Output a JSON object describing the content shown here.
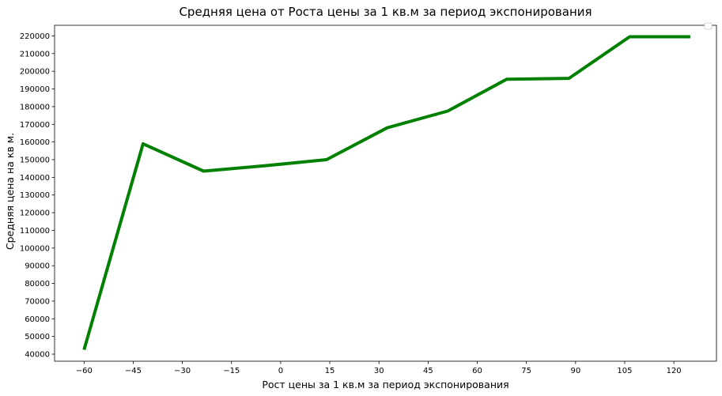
{
  "chart_data": {
    "type": "line",
    "title": "Средняя цена от Роста цены за 1 кв.м за период экспонирования",
    "xlabel": "Рост цены за 1 кв.м за период экспонирования",
    "ylabel": "Средняя цена на кв м.",
    "xlim": [
      -69,
      133
    ],
    "ylim": [
      36000,
      226000
    ],
    "xticks": [
      -60,
      -45,
      -30,
      -15,
      0,
      15,
      30,
      45,
      60,
      75,
      90,
      105,
      120
    ],
    "xtick_labels": [
      "−60",
      "−45",
      "−30",
      "−15",
      "0",
      "15",
      "30",
      "45",
      "60",
      "75",
      "90",
      "105",
      "120"
    ],
    "yticks": [
      40000,
      50000,
      60000,
      70000,
      80000,
      90000,
      100000,
      110000,
      120000,
      130000,
      140000,
      150000,
      160000,
      170000,
      180000,
      190000,
      200000,
      210000,
      220000
    ],
    "grid": false,
    "legend": "top-right (empty)",
    "series": [
      {
        "color": "#008000",
        "x": [
          -60,
          -42,
          -23.5,
          -5,
          14,
          32.5,
          51,
          69,
          88,
          106.5,
          125
        ],
        "y": [
          42500,
          159000,
          143500,
          146500,
          150000,
          168000,
          177500,
          195500,
          196000,
          219500,
          219500
        ]
      }
    ]
  }
}
